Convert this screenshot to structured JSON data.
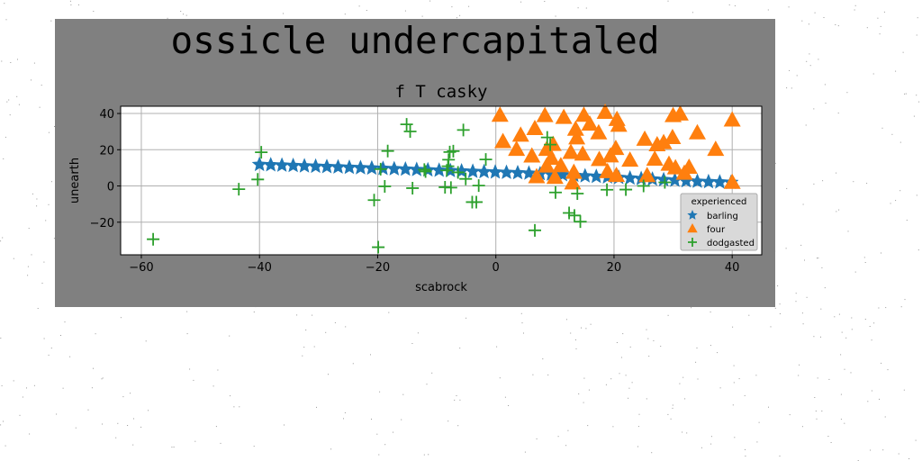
{
  "header": {
    "title": "ossicle undercapitaled"
  },
  "chart_data": {
    "type": "scatter",
    "title": "f T casky",
    "xlabel": "scabrock",
    "ylabel": "unearth",
    "xlim": [
      -63.5,
      45
    ],
    "ylim": [
      -38,
      44
    ],
    "xticks": [
      -60,
      -40,
      -20,
      0,
      20,
      40
    ],
    "yticks": [
      -20,
      0,
      20,
      40
    ],
    "grid": true,
    "legend": {
      "title": "experienced",
      "placement": "lower-right"
    },
    "colors": {
      "barling": "#1f77b4",
      "four": "#ff7f0e",
      "dodgasted": "#2ca02c",
      "panel": "#808080"
    },
    "series": [
      {
        "name": "barling",
        "marker": "star",
        "x": [
          -40,
          -38.1,
          -36.2,
          -34.3,
          -32.4,
          -30.5,
          -28.6,
          -26.7,
          -24.8,
          -22.9,
          -21,
          -19.1,
          -17.2,
          -15.3,
          -13.4,
          -11.5,
          -9.6,
          -7.7,
          -5.8,
          -3.9,
          -2,
          -0.1,
          1.8,
          3.7,
          5.6,
          7.5,
          9.4,
          11.3,
          13.2,
          15.1,
          17,
          18.9,
          20.8,
          22.7,
          24.6,
          26.5,
          28.4,
          30.3,
          32.2,
          34.1,
          36,
          37.9,
          39.8
        ],
        "y": [
          11.8,
          11.6,
          11.4,
          11.2,
          11,
          10.8,
          10.6,
          10.4,
          10.2,
          10,
          9.8,
          9.6,
          9.4,
          9.2,
          9,
          8.8,
          8.6,
          8.4,
          8.2,
          8,
          7.8,
          7.6,
          7.4,
          7.2,
          7,
          6.7,
          6.4,
          6.1,
          5.8,
          5.5,
          5.2,
          4.9,
          4.6,
          4.3,
          4,
          3.7,
          3.4,
          3.1,
          2.8,
          2.5,
          2.3,
          2.1,
          1.9
        ]
      },
      {
        "name": "four",
        "marker": "triangle",
        "x": [
          0.7,
          4.2,
          8.3,
          11.5,
          14.9,
          18.5,
          20.5,
          30,
          31.2,
          40,
          1.2,
          6.6,
          9.7,
          13.7,
          15.9,
          17.4,
          20.8,
          27.3,
          34.1,
          37.2,
          6.1,
          8.6,
          12.7,
          13.5,
          17.5,
          19.4,
          22.7,
          25.2,
          28.4,
          29.9,
          8.6,
          11,
          14.7,
          20.3,
          26.9,
          29.3,
          32.7,
          6.9,
          10,
          13.2,
          18.9,
          25.6,
          30.4,
          13,
          20.4,
          31.9,
          3.5,
          9.4,
          40
        ],
        "y": [
          38.9,
          27.9,
          38.7,
          37.7,
          38.9,
          40.5,
          36.6,
          38.7,
          39.6,
          36.3,
          24.4,
          31.6,
          22.8,
          26.4,
          34,
          29.2,
          33.4,
          22.6,
          29.2,
          20.1,
          16.4,
          20.1,
          18.4,
          31.2,
          14.5,
          16.5,
          14.1,
          25.7,
          23.8,
          26.6,
          10.9,
          11.1,
          17.5,
          20.6,
          14.7,
          11.9,
          10.2,
          5,
          4.6,
          7.4,
          7.8,
          5.6,
          9.9,
          1.6,
          5.7,
          6.9,
          20.1,
          15.2,
          1.9
        ]
      },
      {
        "name": "dodgasted",
        "marker": "plus",
        "x": [
          -58,
          -43.5,
          -40.3,
          -39.7,
          -20.6,
          -19.9,
          -19.5,
          -18.8,
          -18.3,
          -15.1,
          -14.5,
          -14.1,
          -12.1,
          -11.9,
          -8.6,
          -8.3,
          -8.1,
          -8,
          -7.8,
          -7.6,
          -7.2,
          -6.4,
          -5.5,
          -5.1,
          -4,
          -3.3,
          -2.9,
          -1.7,
          6.6,
          8.7,
          9.2,
          10.1,
          12.4,
          13.3,
          13.8,
          14.3,
          18.8,
          22,
          25,
          28.6
        ],
        "y": [
          -29.4,
          -1.8,
          3.6,
          18.6,
          -7.8,
          -33.8,
          9.3,
          -0.2,
          19.3,
          34,
          30.1,
          -1.2,
          9,
          8,
          -0.7,
          8.6,
          10.9,
          14.5,
          18.7,
          -0.9,
          19.2,
          7.5,
          30.9,
          3.9,
          -8.9,
          -8.9,
          0.2,
          14.6,
          -24.5,
          26.8,
          22.8,
          -3.6,
          -14.9,
          -16.3,
          -4.2,
          -19.7,
          -2.1,
          -2,
          0,
          2
        ]
      }
    ]
  }
}
